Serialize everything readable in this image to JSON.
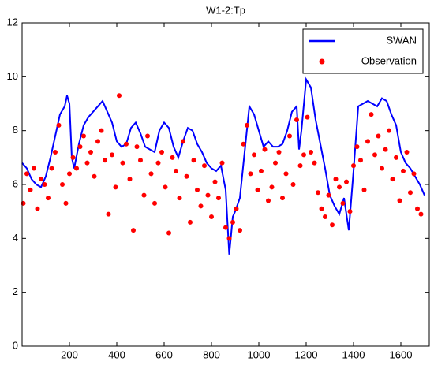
{
  "chart_data": {
    "type": "line_scatter",
    "title": "W1-2:Tp",
    "xlim": [
      0,
      1720
    ],
    "ylim": [
      0,
      12
    ],
    "xticks": [
      200,
      400,
      600,
      800,
      1000,
      1200,
      1400,
      1600
    ],
    "yticks": [
      0,
      2,
      4,
      6,
      8,
      10,
      12
    ],
    "legend": "upper right",
    "series": [
      {
        "name": "SWAN",
        "type": "line",
        "color": "#0000ff",
        "x": [
          0,
          20,
          40,
          60,
          80,
          100,
          120,
          140,
          160,
          180,
          190,
          200,
          210,
          220,
          240,
          260,
          280,
          300,
          320,
          340,
          360,
          380,
          400,
          420,
          440,
          460,
          480,
          500,
          520,
          540,
          560,
          580,
          600,
          620,
          640,
          660,
          680,
          700,
          720,
          740,
          760,
          780,
          800,
          820,
          840,
          860,
          875,
          890,
          900,
          920,
          940,
          960,
          980,
          1000,
          1020,
          1040,
          1060,
          1080,
          1100,
          1120,
          1140,
          1160,
          1170,
          1180,
          1200,
          1220,
          1240,
          1260,
          1280,
          1300,
          1320,
          1340,
          1360,
          1380,
          1400,
          1420,
          1440,
          1460,
          1480,
          1500,
          1520,
          1540,
          1560,
          1580,
          1600,
          1620,
          1640,
          1660,
          1680,
          1700
        ],
        "values": [
          6.8,
          6.6,
          6.2,
          6.0,
          5.9,
          6.3,
          7.0,
          7.8,
          8.6,
          8.9,
          9.3,
          9.0,
          7.0,
          6.6,
          7.5,
          8.2,
          8.5,
          8.7,
          8.9,
          9.1,
          8.7,
          8.3,
          7.6,
          7.4,
          7.5,
          8.1,
          8.3,
          7.9,
          7.4,
          7.3,
          7.2,
          8.0,
          8.3,
          8.1,
          7.4,
          7.0,
          7.6,
          8.1,
          8.0,
          7.5,
          7.2,
          6.8,
          6.6,
          6.5,
          6.7,
          5.8,
          3.4,
          4.8,
          5.0,
          5.5,
          7.2,
          8.9,
          8.6,
          8.0,
          7.4,
          7.6,
          7.4,
          7.4,
          7.5,
          8.0,
          8.7,
          8.9,
          7.3,
          8.0,
          9.9,
          9.6,
          8.4,
          7.5,
          6.6,
          5.6,
          5.2,
          4.9,
          5.5,
          4.3,
          6.5,
          8.9,
          9.0,
          9.1,
          9.0,
          8.9,
          9.2,
          9.1,
          8.6,
          8.2,
          7.2,
          6.8,
          6.6,
          6.3,
          6.0,
          5.6
        ]
      },
      {
        "name": "Observation",
        "type": "scatter",
        "color": "#ff0000",
        "x": [
          5,
          20,
          35,
          50,
          65,
          80,
          95,
          110,
          125,
          140,
          155,
          170,
          185,
          200,
          215,
          230,
          245,
          260,
          275,
          290,
          305,
          320,
          335,
          350,
          365,
          380,
          395,
          410,
          425,
          440,
          455,
          470,
          485,
          500,
          515,
          530,
          545,
          560,
          575,
          590,
          605,
          620,
          635,
          650,
          665,
          680,
          695,
          710,
          725,
          740,
          755,
          770,
          785,
          800,
          815,
          830,
          845,
          860,
          875,
          890,
          905,
          920,
          935,
          950,
          965,
          980,
          995,
          1010,
          1025,
          1040,
          1055,
          1070,
          1085,
          1100,
          1115,
          1130,
          1145,
          1160,
          1175,
          1190,
          1205,
          1220,
          1235,
          1250,
          1265,
          1280,
          1295,
          1310,
          1325,
          1340,
          1355,
          1370,
          1385,
          1400,
          1415,
          1430,
          1445,
          1460,
          1475,
          1490,
          1505,
          1520,
          1535,
          1550,
          1565,
          1580,
          1595,
          1610,
          1625,
          1640,
          1655,
          1670,
          1685
        ],
        "values": [
          5.3,
          6.4,
          5.8,
          6.6,
          5.1,
          6.2,
          6.0,
          5.5,
          6.6,
          7.2,
          8.2,
          6.0,
          5.3,
          6.4,
          7.0,
          6.6,
          7.4,
          7.8,
          6.8,
          7.2,
          6.3,
          7.6,
          8.0,
          6.9,
          4.9,
          7.1,
          5.9,
          9.3,
          6.8,
          7.5,
          6.2,
          4.3,
          7.4,
          6.9,
          5.6,
          7.8,
          6.4,
          5.3,
          6.8,
          7.2,
          5.9,
          4.2,
          7.0,
          6.5,
          5.5,
          7.6,
          6.3,
          4.6,
          6.9,
          5.8,
          5.2,
          6.7,
          5.6,
          4.8,
          6.1,
          5.5,
          6.8,
          4.4,
          4.0,
          4.6,
          5.1,
          4.3,
          7.5,
          8.2,
          6.4,
          7.1,
          5.8,
          6.5,
          7.3,
          5.4,
          5.9,
          6.8,
          7.2,
          5.5,
          6.4,
          7.8,
          6.0,
          8.4,
          6.7,
          7.1,
          8.5,
          7.2,
          6.8,
          5.7,
          5.1,
          4.8,
          5.6,
          4.5,
          6.2,
          5.9,
          5.3,
          6.1,
          5.0,
          6.7,
          7.4,
          6.9,
          5.8,
          7.6,
          8.6,
          7.1,
          7.8,
          6.6,
          7.3,
          8.0,
          6.2,
          7.0,
          5.4,
          6.5,
          7.2,
          5.7,
          6.4,
          5.1,
          4.9
        ]
      }
    ]
  }
}
